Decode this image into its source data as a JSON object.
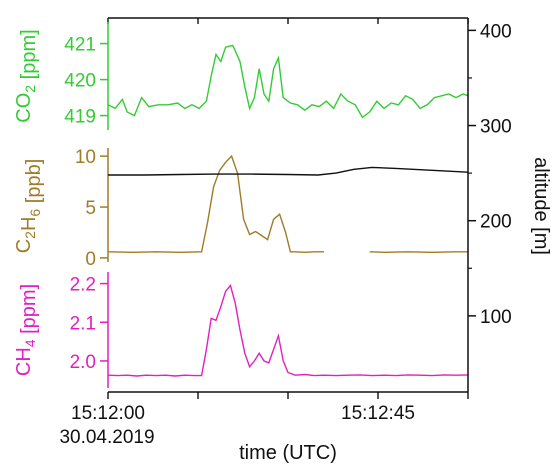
{
  "chart_data": [
    {
      "type": "line",
      "panel": "co2",
      "ylabel": "CO2 [ppm]",
      "ylabel_parts": {
        "main": "CO",
        "sub": "2",
        "unit": " [ppm]"
      },
      "color": "#33cc33",
      "ylim": [
        418.6,
        421.6
      ],
      "yticks": [
        "419",
        "420",
        "421"
      ],
      "series": [
        {
          "x": [
            0.0,
            1.2,
            2.4,
            3.2,
            4.4,
            5.6,
            6.8,
            8.4,
            10.0,
            11.6,
            12.8,
            14.0,
            15.2,
            16.4,
            17.2,
            18.0,
            18.8,
            19.6,
            20.8,
            22.0,
            22.8,
            23.6,
            24.4,
            25.2,
            26.0,
            26.8,
            27.6,
            28.4,
            29.2,
            30.4,
            31.6,
            32.8,
            34.0,
            35.2,
            36.4,
            37.6,
            38.8,
            40.0,
            41.2,
            42.4,
            43.6,
            44.8,
            46.0,
            47.2,
            48.4,
            49.6,
            50.8,
            52.0,
            53.2,
            54.4,
            55.6,
            56.8,
            58.0,
            59.2,
            60.0
          ],
          "y": [
            419.3,
            419.2,
            419.45,
            419.1,
            419.0,
            419.5,
            419.25,
            419.3,
            419.3,
            419.35,
            419.2,
            419.3,
            419.2,
            419.4,
            420.1,
            420.7,
            420.5,
            420.9,
            420.95,
            420.5,
            419.8,
            419.2,
            419.5,
            420.3,
            419.6,
            419.4,
            420.3,
            420.6,
            419.5,
            419.35,
            419.3,
            419.15,
            419.3,
            419.25,
            419.4,
            419.2,
            419.6,
            419.4,
            419.3,
            418.95,
            419.1,
            419.4,
            419.2,
            419.35,
            419.3,
            419.55,
            419.45,
            419.2,
            419.3,
            419.5,
            419.55,
            419.6,
            419.5,
            419.6,
            419.55
          ]
        }
      ]
    },
    {
      "type": "line",
      "panel": "c2h6",
      "ylabel": "C2H6 [ppb]",
      "ylabel_parts": {
        "main": "C",
        "sub": "2",
        "main2": "H",
        "sub2": "6",
        "unit": " [ppb]"
      },
      "color": "#a07c28",
      "ylim": [
        -0.4,
        10.8
      ],
      "yticks": [
        "0",
        "5",
        "10"
      ],
      "series": [
        {
          "x": [
            0.0,
            4.0,
            8.0,
            12.0,
            15.6,
            16.6,
            17.6,
            18.6,
            19.6,
            20.6,
            21.6,
            22.6,
            23.6,
            24.6,
            25.6,
            26.6,
            27.6,
            28.6,
            29.6,
            30.4,
            31.2,
            32.8,
            34.4,
            36.0,
            null,
            43.6,
            46.0,
            50.0,
            54.0,
            58.0,
            60.0
          ],
          "y": [
            0.6,
            0.55,
            0.6,
            0.55,
            0.6,
            3.5,
            7.0,
            8.6,
            9.4,
            10.0,
            8.3,
            3.8,
            2.3,
            2.6,
            2.2,
            1.8,
            3.8,
            4.3,
            2.5,
            0.6,
            0.6,
            0.55,
            0.6,
            0.6,
            null,
            0.6,
            0.55,
            0.6,
            0.55,
            0.6,
            0.6
          ]
        }
      ]
    },
    {
      "type": "line",
      "panel": "ch4",
      "ylabel": "CH4 [ppm]",
      "ylabel_parts": {
        "main": "CH",
        "sub": "4",
        "unit": " [ppm]"
      },
      "color": "#e020c0",
      "ylim": [
        1.93,
        2.23
      ],
      "yticks": [
        "2.0",
        "2.1",
        "2.2"
      ],
      "series": [
        {
          "x": [
            0.0,
            1.6,
            3.2,
            4.8,
            6.4,
            8.0,
            9.6,
            11.2,
            12.8,
            14.4,
            15.6,
            16.4,
            17.2,
            18.0,
            18.8,
            19.6,
            20.4,
            21.2,
            22.0,
            22.8,
            23.6,
            24.4,
            25.2,
            26.0,
            26.8,
            27.6,
            28.4,
            29.2,
            30.0,
            31.2,
            32.8,
            34.4,
            36.0,
            38.0,
            40.0,
            42.0,
            44.0,
            46.0,
            48.0,
            50.0,
            52.0,
            54.0,
            56.0,
            58.0,
            60.0
          ],
          "y": [
            1.963,
            1.962,
            1.963,
            1.961,
            1.963,
            1.962,
            1.963,
            1.961,
            1.963,
            1.962,
            1.962,
            2.03,
            2.11,
            2.105,
            2.14,
            2.18,
            2.195,
            2.15,
            2.08,
            2.02,
            1.985,
            2.0,
            2.02,
            2.0,
            1.995,
            2.03,
            2.065,
            2.0,
            1.97,
            1.963,
            1.965,
            1.962,
            1.963,
            1.962,
            1.963,
            1.964,
            1.962,
            1.963,
            1.962,
            1.964,
            1.963,
            1.962,
            1.964,
            1.963,
            1.964
          ]
        }
      ]
    },
    {
      "type": "line",
      "panel": "altitude",
      "axis": "right",
      "ylabel": "altitude [m]",
      "color": "#111111",
      "ylim": [
        20,
        413
      ],
      "yticks": [
        "100",
        "200",
        "300",
        "400"
      ],
      "series": [
        {
          "x": [
            0.0,
            6.0,
            12.0,
            18.0,
            24.0,
            30.0,
            35.0,
            38.0,
            41.0,
            44.0,
            48.0,
            54.0,
            60.0
          ],
          "y": [
            248,
            248,
            248.5,
            249,
            249,
            248.5,
            248,
            250,
            254,
            256,
            255,
            253,
            251
          ]
        }
      ]
    }
  ],
  "x_axis": {
    "label": "time (UTC)",
    "xlim": [
      0,
      60
    ],
    "tick_labels": [
      "15:12:00",
      "15:12:45"
    ],
    "date_label": "30.04.2019"
  }
}
